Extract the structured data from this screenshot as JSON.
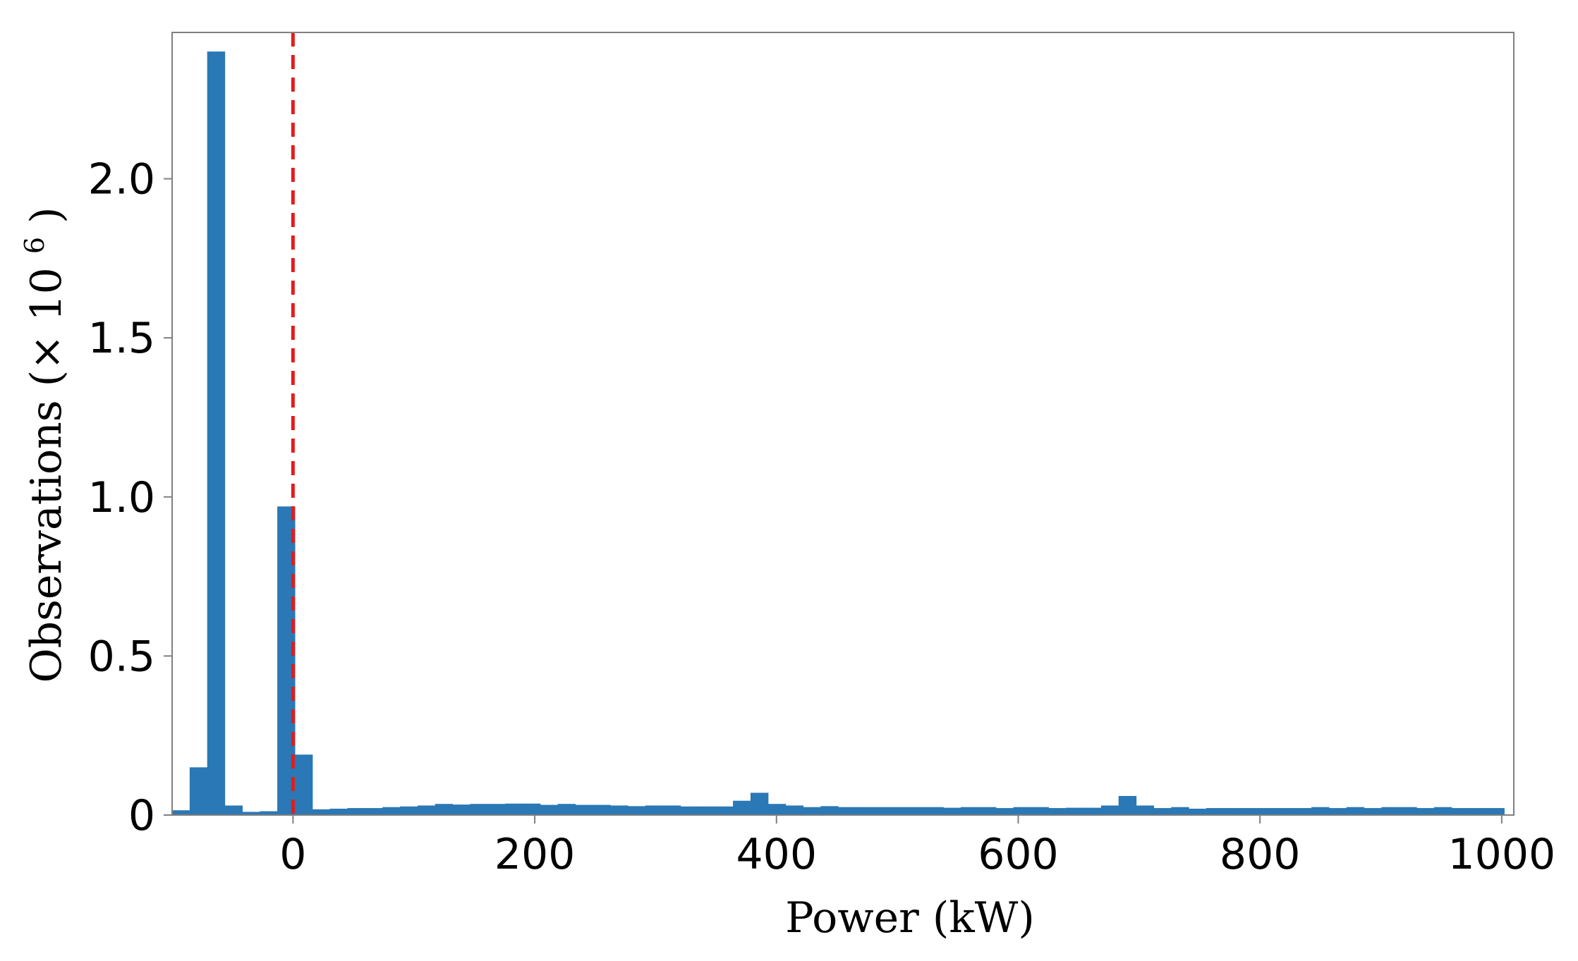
{
  "chart_data": {
    "type": "bar",
    "xlabel": "Power (kW)",
    "ylabel": "Observations (× 10",
    "ylabel_sup": "6",
    "ylabel_close": ")",
    "xlim": [
      -100,
      1010
    ],
    "ylim": [
      0,
      2.46
    ],
    "xticks": [
      0,
      200,
      400,
      600,
      800,
      1000
    ],
    "yticks": [
      0,
      0.5,
      1.0,
      1.5,
      2.0
    ],
    "xtick_labels": [
      "0",
      "200",
      "400",
      "600",
      "800",
      "1000"
    ],
    "ytick_labels": [
      "0",
      "0.5",
      "1.0",
      "1.5",
      "2.0"
    ],
    "bin_width": 14.5,
    "bins_x": [
      -100,
      -85.5,
      -71,
      -56.5,
      -42,
      -27.5,
      -13,
      1.5,
      16,
      30.5,
      45,
      59.5,
      74,
      88.5,
      103,
      117.5,
      132,
      146.5,
      161,
      175.5,
      190,
      204.5,
      219,
      233.5,
      248,
      262.5,
      277,
      291.5,
      306,
      320.5,
      335,
      349.5,
      364,
      378.5,
      393,
      407.5,
      422,
      436.5,
      451,
      465.5,
      480,
      494.5,
      509,
      523.5,
      538,
      552.5,
      567,
      581.5,
      596,
      610.5,
      625,
      639.5,
      654,
      668.5,
      683,
      697.5,
      712,
      726.5,
      741,
      755.5,
      770,
      784.5,
      799,
      813.5,
      828,
      842.5,
      857,
      871.5,
      886,
      900.5,
      915,
      929.5,
      944,
      958.5,
      973,
      987.5
    ],
    "values": [
      0.015,
      0.15,
      2.4,
      0.03,
      0.01,
      0.012,
      0.97,
      0.19,
      0.018,
      0.02,
      0.022,
      0.022,
      0.025,
      0.027,
      0.03,
      0.035,
      0.033,
      0.035,
      0.035,
      0.036,
      0.036,
      0.032,
      0.035,
      0.032,
      0.032,
      0.03,
      0.028,
      0.03,
      0.03,
      0.027,
      0.027,
      0.027,
      0.045,
      0.07,
      0.035,
      0.03,
      0.025,
      0.028,
      0.025,
      0.025,
      0.025,
      0.025,
      0.025,
      0.025,
      0.023,
      0.025,
      0.025,
      0.022,
      0.025,
      0.025,
      0.022,
      0.023,
      0.023,
      0.03,
      0.06,
      0.03,
      0.022,
      0.025,
      0.02,
      0.022,
      0.022,
      0.022,
      0.022,
      0.022,
      0.022,
      0.025,
      0.022,
      0.025,
      0.022,
      0.025,
      0.025,
      0.022,
      0.025,
      0.022,
      0.022,
      0.022
    ],
    "reference_line": {
      "x": 0,
      "style": "dashed"
    },
    "grid": false,
    "legend": "none"
  },
  "colors": {
    "bar": "#2a78b5",
    "reference_line": "#e31c1c",
    "axes": "#808080"
  }
}
